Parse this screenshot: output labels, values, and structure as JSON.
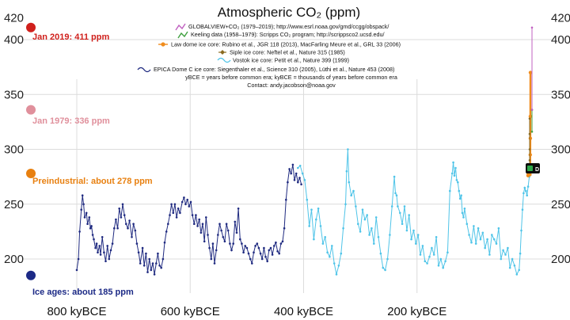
{
  "chart_data": {
    "type": "line",
    "title": "Atmospheric CO₂ (ppm)",
    "xlabel": "",
    "ylabel": "",
    "xlim_kyBCE": [
      850,
      0
    ],
    "ylim": [
      170,
      425
    ],
    "y_ticks": [
      200,
      250,
      300,
      350,
      400,
      420
    ],
    "y_tick_labels": [
      "200",
      "250",
      "300",
      "350",
      "400",
      "420"
    ],
    "x_ticks_kyBCE": [
      800,
      600,
      400,
      200
    ],
    "x_tick_labels": [
      "800 kyBCE",
      "600 kyBCE",
      "400 kyBCE",
      "200 kyBCE"
    ],
    "grid": true,
    "legend": [
      {
        "text": "GLOBALVIEW+CO₂ (1979–2019); http://www.esrl.noaa.gov/gmd/ccgg/obspack/",
        "color": "#c060c0"
      },
      {
        "text": "Keeling data (1958–1979): Scripps CO₂ program; http://scrippsco2.ucsd.edu/",
        "color": "#40a040"
      },
      {
        "text": "Law dome ice core: Rubino et al., JGR 118 (2013), MacFarling Meure et al., GRL 33 (2006)",
        "color": "#f08c1c"
      },
      {
        "text": "Siple ice core:  Neftel et al., Nature 315 (1985)",
        "color": "#8a6a20"
      },
      {
        "text": "Vostok ice core:  Petit et al., Nature 399 (1999)",
        "color": "#4fc4e8"
      },
      {
        "text": "EPICA Dome C ice core:  Siegenthaler et al., Science 310 (2005), Lüthi et al., Nature 453 (2008)",
        "color": "#1f2a80"
      }
    ],
    "notes": [
      "yBCE = years before common era; kyBCE = thousands of years before common era",
      "Contact: andy.jacobson@noaa.gov"
    ],
    "annotations": [
      {
        "label": "Jan 2019: 411 ppm",
        "value": 411,
        "color": "#d0201c"
      },
      {
        "label": "Jan 1979: 336 ppm",
        "value": 336,
        "color": "#e0909c"
      },
      {
        "label": "Preindustrial: about 278 ppm",
        "value": 278,
        "color": "#e88010"
      },
      {
        "label": "Ice ages: about 185 ppm",
        "value": 185,
        "color": "#1c2a86"
      }
    ],
    "series": [
      {
        "name": "EPICA Dome C ice core",
        "color": "#1f2a80",
        "x": [
          800,
          797,
          795,
          792,
          790,
          788,
          786,
          783,
          781,
          778,
          776,
          774,
          772,
          770,
          767,
          765,
          763,
          760,
          758,
          755,
          752,
          749,
          746,
          743,
          740,
          737,
          734,
          731,
          728,
          725,
          722,
          719,
          716,
          713,
          710,
          707,
          703,
          700,
          697,
          694,
          691,
          688,
          684,
          681,
          678,
          675,
          672,
          669,
          666,
          663,
          660,
          657,
          654,
          651,
          648,
          645,
          642,
          639,
          636,
          633,
          630,
          627,
          624,
          621,
          618,
          614,
          611,
          608,
          605,
          602,
          599,
          596,
          593,
          590,
          587,
          584,
          581,
          578,
          575,
          572,
          569,
          566,
          563,
          560,
          557,
          554,
          551,
          548,
          545,
          542,
          539,
          536,
          533,
          530,
          527,
          524,
          521,
          518,
          515,
          512,
          509,
          506,
          503,
          500,
          497,
          494,
          491,
          488,
          485,
          482,
          479,
          476,
          473,
          470,
          467,
          464,
          461,
          458,
          455,
          452,
          449,
          446,
          443,
          440,
          437,
          434,
          431,
          428,
          425,
          422,
          419,
          416,
          413,
          410,
          407,
          404
        ],
        "values": [
          190,
          200,
          225,
          245,
          258,
          250,
          238,
          242,
          232,
          238,
          228,
          230,
          222,
          218,
          210,
          214,
          206,
          212,
          204,
          220,
          206,
          198,
          212,
          200,
          208,
          214,
          228,
          236,
          228,
          246,
          238,
          250,
          240,
          232,
          228,
          235,
          220,
          232,
          226,
          214,
          206,
          196,
          210,
          194,
          205,
          188,
          200,
          190,
          196,
          186,
          196,
          205,
          194,
          192,
          200,
          215,
          225,
          232,
          240,
          250,
          242,
          250,
          238,
          246,
          242,
          252,
          256,
          250,
          254,
          248,
          252,
          240,
          232,
          240,
          230,
          236,
          224,
          232,
          216,
          238,
          222,
          210,
          200,
          214,
          196,
          208,
          222,
          232,
          226,
          220,
          216,
          232,
          226,
          214,
          208,
          214,
          234,
          224,
          246,
          218,
          214,
          206,
          212,
          210,
          205,
          200,
          196,
          206,
          212,
          214,
          210,
          205,
          200,
          210,
          202,
          198,
          208,
          210,
          204,
          212,
          215,
          207,
          205,
          214,
          216,
          228,
          254,
          270,
          282,
          278,
          286,
          272,
          278,
          270,
          274,
          268
        ]
      },
      {
        "name": "Vostok ice core",
        "color": "#4fc4e8",
        "x": [
          410,
          406,
          402,
          398,
          394,
          390,
          386,
          382,
          378,
          374,
          370,
          366,
          362,
          358,
          354,
          350,
          346,
          342,
          338,
          334,
          330,
          326,
          324,
          322,
          320,
          316,
          312,
          308,
          304,
          300,
          296,
          292,
          288,
          284,
          280,
          276,
          272,
          268,
          264,
          260,
          256,
          252,
          248,
          244,
          240,
          238,
          236,
          234,
          230,
          226,
          222,
          218,
          214,
          210,
          206,
          202,
          198,
          194,
          190,
          186,
          182,
          178,
          174,
          170,
          166,
          162,
          158,
          154,
          150,
          146,
          142,
          138,
          136,
          134,
          132,
          130,
          128,
          126,
          124,
          122,
          120,
          118,
          116,
          112,
          108,
          104,
          100,
          96,
          92,
          88,
          84,
          80,
          76,
          72,
          68,
          64,
          60,
          56,
          52,
          48,
          44,
          40,
          36,
          32,
          28,
          24,
          20,
          18,
          16,
          14,
          12,
          10,
          8,
          6,
          4,
          2
        ],
        "values": [
          283,
          285,
          278,
          272,
          254,
          230,
          245,
          218,
          236,
          246,
          230,
          214,
          220,
          206,
          202,
          212,
          196,
          186,
          194,
          205,
          228,
          250,
          280,
          300,
          270,
          258,
          262,
          248,
          232,
          225,
          245,
          236,
          240,
          222,
          228,
          214,
          238,
          220,
          205,
          192,
          190,
          200,
          222,
          248,
          275,
          260,
          258,
          248,
          242,
          232,
          248,
          226,
          240,
          218,
          226,
          214,
          222,
          204,
          212,
          198,
          196,
          202,
          210,
          204,
          220,
          194,
          200,
          192,
          198,
          206,
          262,
          278,
          288,
          276,
          283,
          272,
          270,
          262,
          255,
          258,
          242,
          238,
          246,
          232,
          222,
          215,
          230,
          214,
          228,
          218,
          224,
          210,
          218,
          204,
          222,
          218,
          214,
          228,
          200,
          208,
          204,
          210,
          192,
          200,
          194,
          186,
          190,
          205,
          226,
          245,
          260,
          265,
          262,
          258,
          266,
          275
        ]
      },
      {
        "name": "Law dome ice core",
        "color": "#f08c1c",
        "x": [
          2.0,
          1.8,
          1.6,
          1.4,
          1.2,
          1.0,
          0.8,
          0.6,
          0.4,
          0.3,
          0.2,
          0.15,
          0.1,
          0.05,
          0.0
        ],
        "values": [
          276,
          278,
          277,
          279,
          280,
          282,
          279,
          281,
          277,
          280,
          285,
          295,
          310,
          330,
          370
        ]
      },
      {
        "name": "Siple ice core",
        "color": "#8a6a20",
        "x": [
          0.2,
          0.15,
          0.1,
          0.05,
          0.02
        ],
        "values": [
          281,
          290,
          300,
          314,
          328
        ]
      },
      {
        "name": "Keeling data (1958–1979)",
        "color": "#40a040",
        "x": [
          0.01,
          0.0
        ],
        "values": [
          316,
          336
        ]
      },
      {
        "name": "GLOBALVIEW+CO₂ (1979–2019)",
        "color": "#c060c0",
        "x": [
          0.0,
          0.0
        ],
        "values": [
          336,
          411
        ]
      }
    ]
  }
}
